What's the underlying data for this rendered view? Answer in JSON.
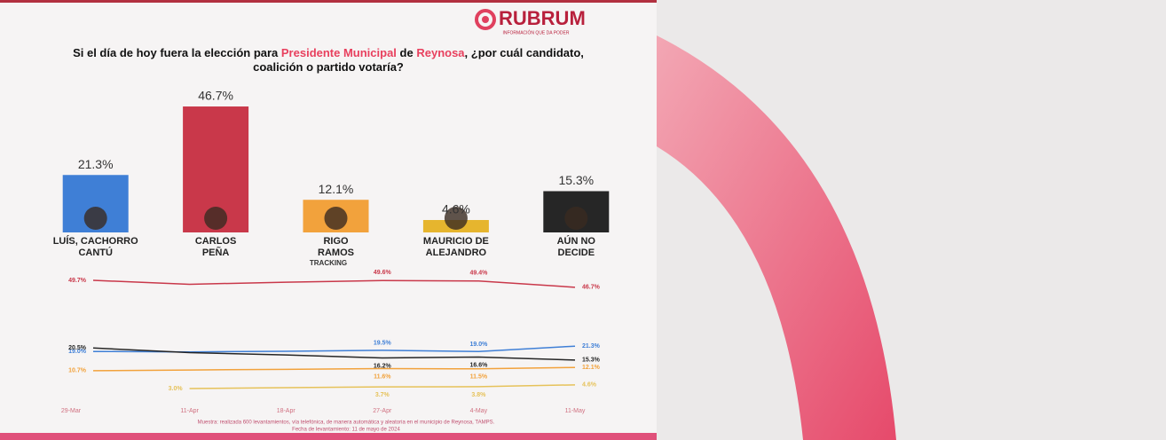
{
  "brand": {
    "name": "RUBRUM",
    "tagline": "INFORMACIÓN QUE DA PODER"
  },
  "question": [
    "Si el día de hoy fuera la elección para ",
    "Presidente Municipal",
    " de ",
    "Reynosa",
    ", ¿por cuál candidato, coalición o partido votaría?"
  ],
  "footnote": [
    "Muestra: realizada 600 levantamientos, vía telefónica, de manera automática y aleatoria en el municipio de Reynosa, TAMPS.",
    "Fecha de levantamiento: 11 de mayo de 2024"
  ],
  "chart_data": [
    {
      "type": "bar",
      "categories": [
        "LUÍS, CACHORRO CANTÚ",
        "CARLOS PEÑA",
        "RIGO RAMOS",
        "MAURICIO DE ALEJANDRO",
        "AÚN NO DECIDE"
      ],
      "values": [
        21.3,
        46.7,
        12.1,
        4.6,
        15.3
      ],
      "value_labels": [
        "21.3%",
        "46.7%",
        "12.1%",
        "4.6%",
        "15.3%"
      ],
      "colors": [
        "#3f7fd6",
        "#c9384a",
        "#f2a23c",
        "#e6b52e",
        "#262626"
      ]
    },
    {
      "type": "line",
      "title": "TRACKING",
      "x": [
        "29-Mar",
        "11-Apr",
        "18-Apr",
        "27-Apr",
        "4-May",
        "11-May"
      ],
      "series": [
        {
          "color": "#c9384a",
          "values": [
            49.7,
            48.0,
            48.9,
            49.6,
            49.4,
            46.7
          ],
          "value_labels": [
            "49.7%",
            null,
            null,
            "49.6%",
            "49.4%",
            "46.7%"
          ]
        },
        {
          "color": "#3f7fd6",
          "values": [
            19.0,
            18.8,
            19.1,
            19.5,
            19.0,
            21.3
          ],
          "value_labels": [
            "19.0%",
            null,
            null,
            "19.5%",
            "19.0%",
            "21.3%"
          ]
        },
        {
          "color": "#262626",
          "values": [
            20.5,
            18.5,
            17.5,
            16.2,
            16.6,
            15.3
          ],
          "value_labels": [
            "20.5%",
            null,
            null,
            "16.2%",
            "16.6%",
            "15.3%"
          ]
        },
        {
          "color": "#f2a23c",
          "values": [
            10.7,
            11.0,
            11.3,
            11.6,
            11.5,
            12.1
          ],
          "value_labels": [
            "10.7%",
            null,
            null,
            "11.6%",
            "11.5%",
            "12.1%"
          ]
        },
        {
          "color": "#e6c25a",
          "values": [
            null,
            3.0,
            3.4,
            3.7,
            3.8,
            4.6
          ],
          "value_labels": [
            null,
            "3.0%",
            null,
            "3.7%",
            "3.8%",
            "4.6%"
          ]
        }
      ]
    }
  ]
}
